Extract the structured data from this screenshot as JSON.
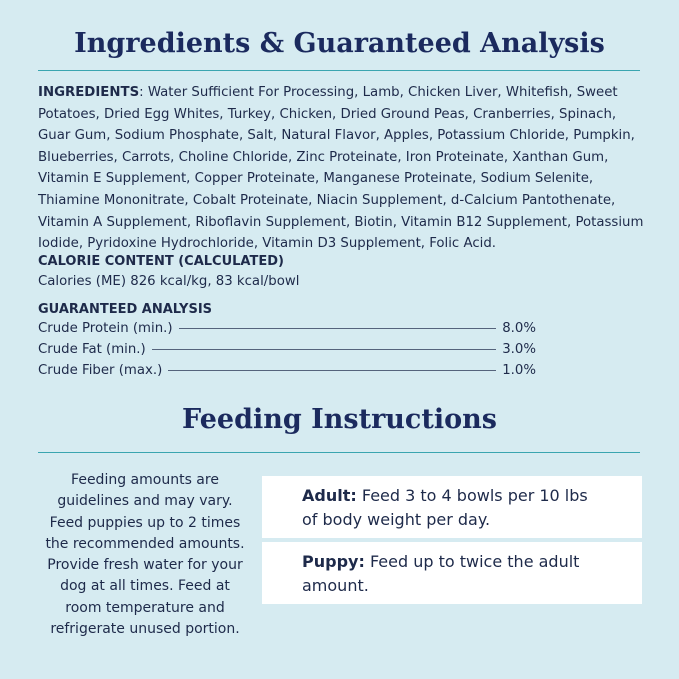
{
  "header": {
    "title": "Ingredients & Guaranteed Analysis"
  },
  "ingredients": {
    "label": "INGREDIENTS",
    "text": ": Water Sufficient For Processing, Lamb, Chicken Liver, Whitefish, Sweet Potatoes, Dried Egg Whites, Turkey, Chicken, Dried Ground Peas, Cranberries, Spinach, Guar Gum, Sodium Phosphate, Salt, Natural Flavor, Apples, Potassium Chloride, Pumpkin, Blueberries, Carrots, Choline Chloride, Zinc Proteinate, Iron Proteinate, Xanthan Gum, Vitamin E Supplement, Copper Proteinate, Manganese Proteinate, Sodium Selenite, Thiamine Mononitrate, Cobalt Proteinate, Niacin Supplement, d-Calcium Pantothenate, Vitamin A Supplement, Riboflavin Supplement, Biotin, Vitamin B12 Supplement, Potassium Iodide, Pyridoxine Hydrochloride, Vitamin D3 Supplement, Folic Acid."
  },
  "calorie": {
    "heading": "CALORIE CONTENT (CALCULATED)",
    "text": "Calories (ME) 826 kcal/kg, 83 kcal/bowl"
  },
  "analysis": {
    "heading": "GUARANTEED ANALYSIS",
    "rows": [
      [
        "Crude Protein (min.)",
        "8.0%"
      ],
      [
        "Crude Fat (min.)",
        "3.0%"
      ],
      [
        "Crude Fiber (max.)",
        "1.0%"
      ]
    ]
  },
  "feeding": {
    "title": "Feeding Instructions",
    "note": "Feeding amounts are guidelines and may vary. Feed puppies up to 2 times the recommended amounts. Provide fresh water for your dog at all times. Feed at room temperature and refrigerate unused portion.",
    "cards": [
      {
        "label": "Adult:",
        "text": "Feed 3 to 4 bowls per 10 lbs of body weight per day."
      },
      {
        "label": "Puppy:",
        "text": "Feed up to twice the adult amount."
      }
    ]
  }
}
